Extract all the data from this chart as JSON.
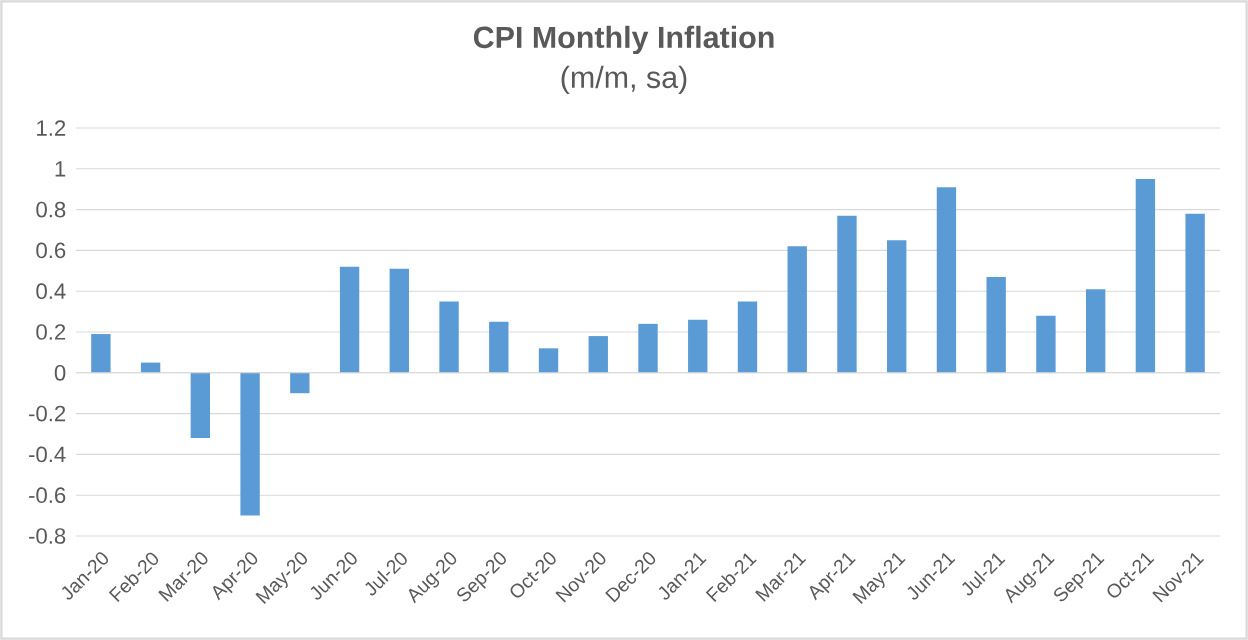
{
  "chart_data": {
    "type": "bar",
    "title": "CPI Monthly Inflation",
    "subtitle": "(m/m, sa)",
    "categories": [
      "Jan-20",
      "Feb-20",
      "Mar-20",
      "Apr-20",
      "May-20",
      "Jun-20",
      "Jul-20",
      "Aug-20",
      "Sep-20",
      "Oct-20",
      "Nov-20",
      "Dec-20",
      "Jan-21",
      "Feb-21",
      "Mar-21",
      "Apr-21",
      "May-21",
      "Jun-21",
      "Jul-21",
      "Aug-21",
      "Sep-21",
      "Oct-21",
      "Nov-21"
    ],
    "values": [
      0.19,
      0.05,
      -0.32,
      -0.7,
      -0.1,
      0.52,
      0.51,
      0.35,
      0.25,
      0.12,
      0.18,
      0.24,
      0.26,
      0.35,
      0.62,
      0.77,
      0.65,
      0.91,
      0.47,
      0.28,
      0.41,
      0.95,
      0.78
    ],
    "color": "#5b9bd5",
    "ylim": [
      -0.8,
      1.2
    ],
    "yticks": [
      -0.8,
      -0.6,
      -0.4,
      -0.2,
      0,
      0.2,
      0.4,
      0.6,
      0.8,
      1,
      1.2
    ],
    "grid": "y"
  }
}
